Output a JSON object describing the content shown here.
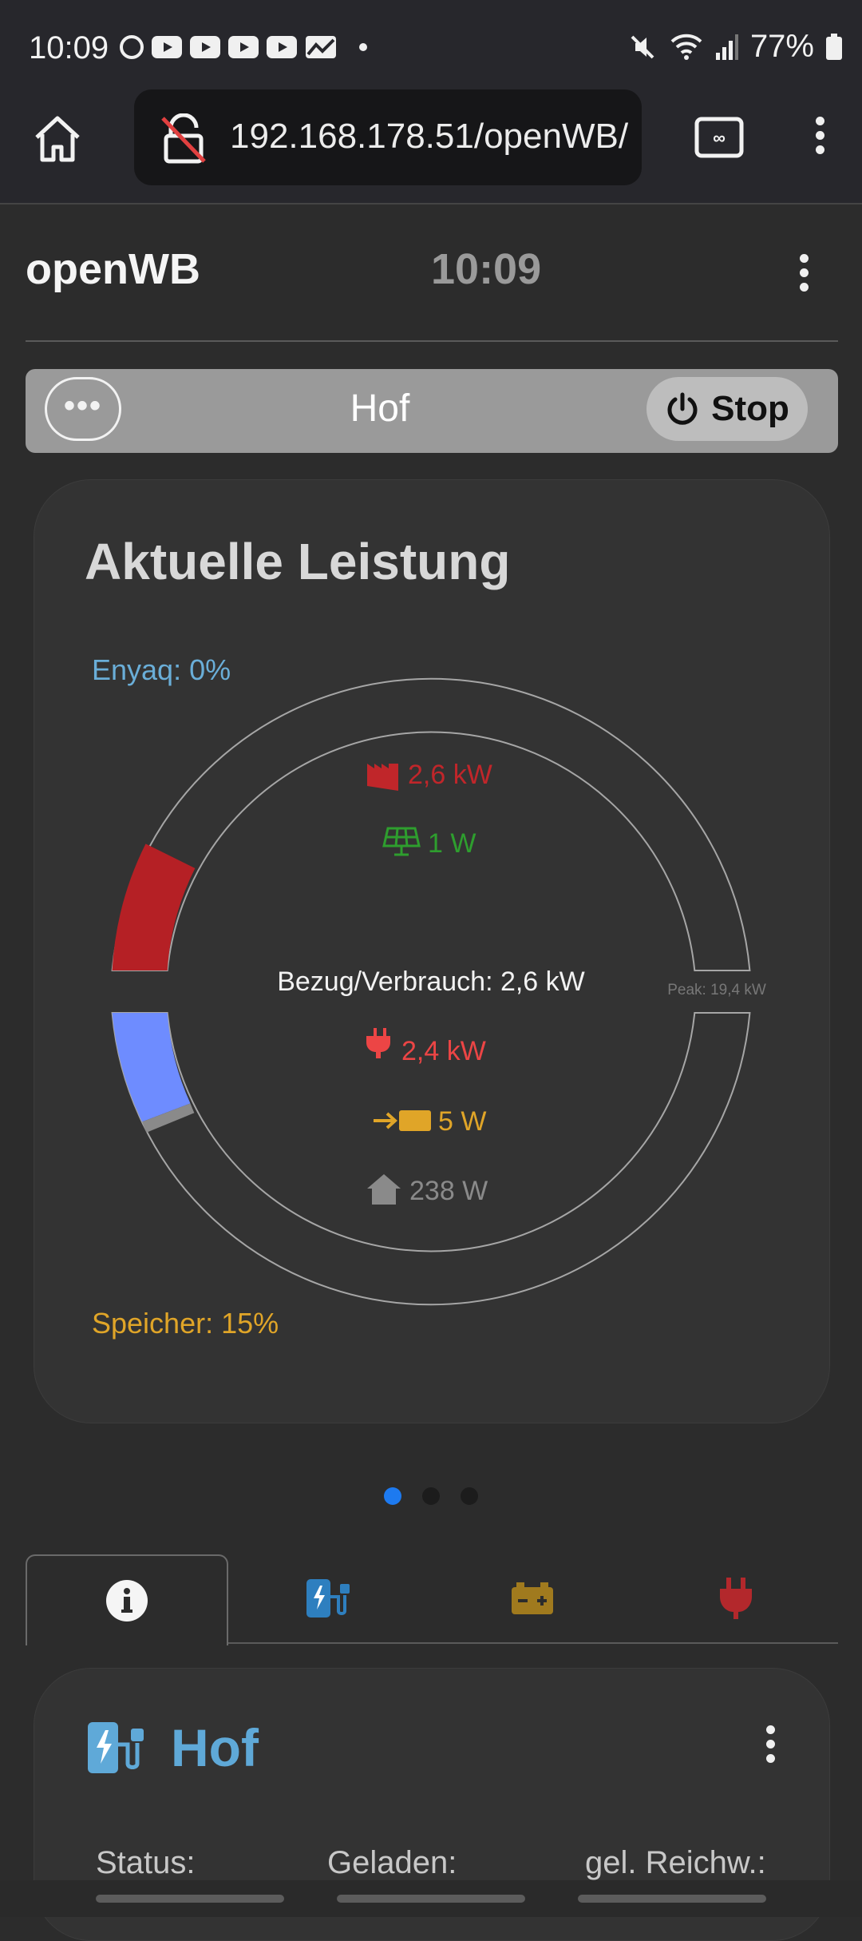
{
  "status_bar": {
    "time": "10:09",
    "battery": "77%"
  },
  "browser": {
    "url": "192.168.178.51/openWB/"
  },
  "header": {
    "title": "openWB",
    "clock": "10:09"
  },
  "charge_point_bar": {
    "more_label": "•••",
    "name": "Hof",
    "stop_label": "Stop"
  },
  "power_card": {
    "title": "Aktuelle Leistung",
    "vehicle_soc": "Enyaq: 0%",
    "battery_soc": "Speicher: 15%",
    "grid": "2,6 kW",
    "pv": "1 W",
    "summary": "Bezug/Verbrauch: 2,6 kW",
    "peak": "Peak: 19,4 kW",
    "charge": "2,4 kW",
    "battery": "5 W",
    "house": "238 W",
    "colors": {
      "grid": "#c0262a",
      "pv": "#2e9e2e",
      "charge": "#ec4545",
      "battery": "#e0a528",
      "house": "#8a8a8a",
      "vehicle": "#6e8cff"
    }
  },
  "carousel": {
    "pages": 3,
    "active": 0
  },
  "tabs": [
    {
      "icon": "info-icon",
      "active": true
    },
    {
      "icon": "charge-station-icon",
      "active": false
    },
    {
      "icon": "battery-icon",
      "active": false
    },
    {
      "icon": "plug-icon",
      "active": false
    }
  ],
  "charge_point_card": {
    "name": "Hof",
    "labels": [
      "Status:",
      "Geladen:",
      "gel. Reichw.:"
    ]
  }
}
